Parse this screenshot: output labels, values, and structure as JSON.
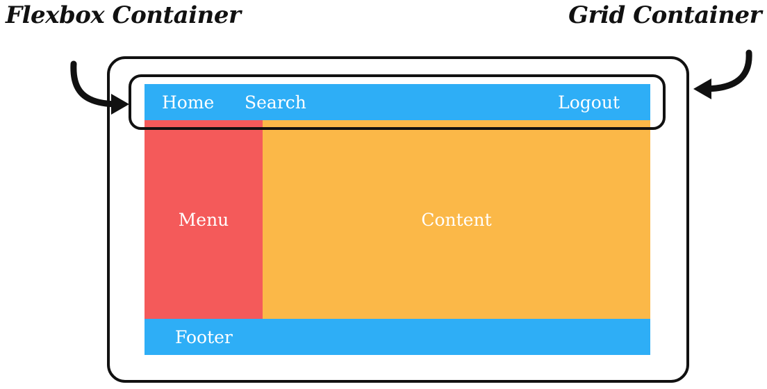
{
  "labels": {
    "flexbox": "Flexbox Container",
    "grid": "Grid Container"
  },
  "layout": {
    "header": {
      "items": [
        "Home",
        "Search",
        "Logout"
      ]
    },
    "menu": "Menu",
    "content": "Content",
    "footer": "Footer"
  },
  "colors": {
    "header": "#2EAEF6",
    "menu": "#F45A5A",
    "content": "#FBB848",
    "footer": "#2EAEF6",
    "outline": "#111111"
  },
  "icons": {
    "left_arrow": "curved-arrow-right-icon",
    "right_arrow": "curved-arrow-left-icon"
  }
}
